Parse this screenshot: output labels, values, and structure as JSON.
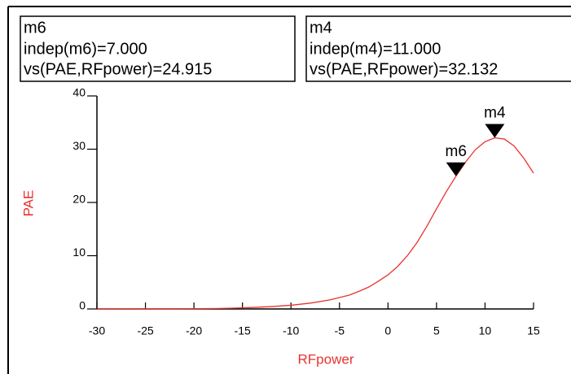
{
  "chart_data": {
    "type": "line",
    "x_label": "RFpower",
    "y_label": "PAE",
    "series": [
      {
        "name": "PAE",
        "color": "#e8332f",
        "x": [
          -30,
          -25,
          -20,
          -18,
          -16,
          -14,
          -12,
          -10,
          -8,
          -6,
          -4,
          -3,
          -2,
          -1,
          0,
          1,
          2,
          3,
          4,
          5,
          6,
          7,
          8,
          9,
          10,
          11,
          12,
          13,
          14,
          15
        ],
        "values": [
          0,
          0.01,
          0.04,
          0.08,
          0.15,
          0.28,
          0.45,
          0.7,
          1.1,
          1.7,
          2.6,
          3.3,
          4.1,
          5.2,
          6.4,
          8.0,
          10.0,
          12.5,
          15.5,
          18.8,
          22.0,
          24.915,
          27.6,
          29.9,
          31.4,
          32.132,
          31.9,
          30.6,
          28.3,
          25.5
        ]
      }
    ],
    "xlim": [
      -30,
      15
    ],
    "xticks": [
      -30,
      -25,
      -20,
      -15,
      -10,
      -5,
      0,
      5,
      10,
      15
    ],
    "ylim": [
      0,
      40
    ],
    "yticks": [
      0,
      10,
      20,
      30,
      40
    ],
    "markers": [
      {
        "name": "m6",
        "x": 7,
        "y": 24.915,
        "x_label": "indep(m6)=7.000",
        "y_label": "vs(PAE,RFpower)=24.915"
      },
      {
        "name": "m4",
        "x": 11,
        "y": 32.132,
        "x_label": "indep(m4)=11.000",
        "y_label": "vs(PAE,RFpower)=32.132"
      }
    ]
  }
}
